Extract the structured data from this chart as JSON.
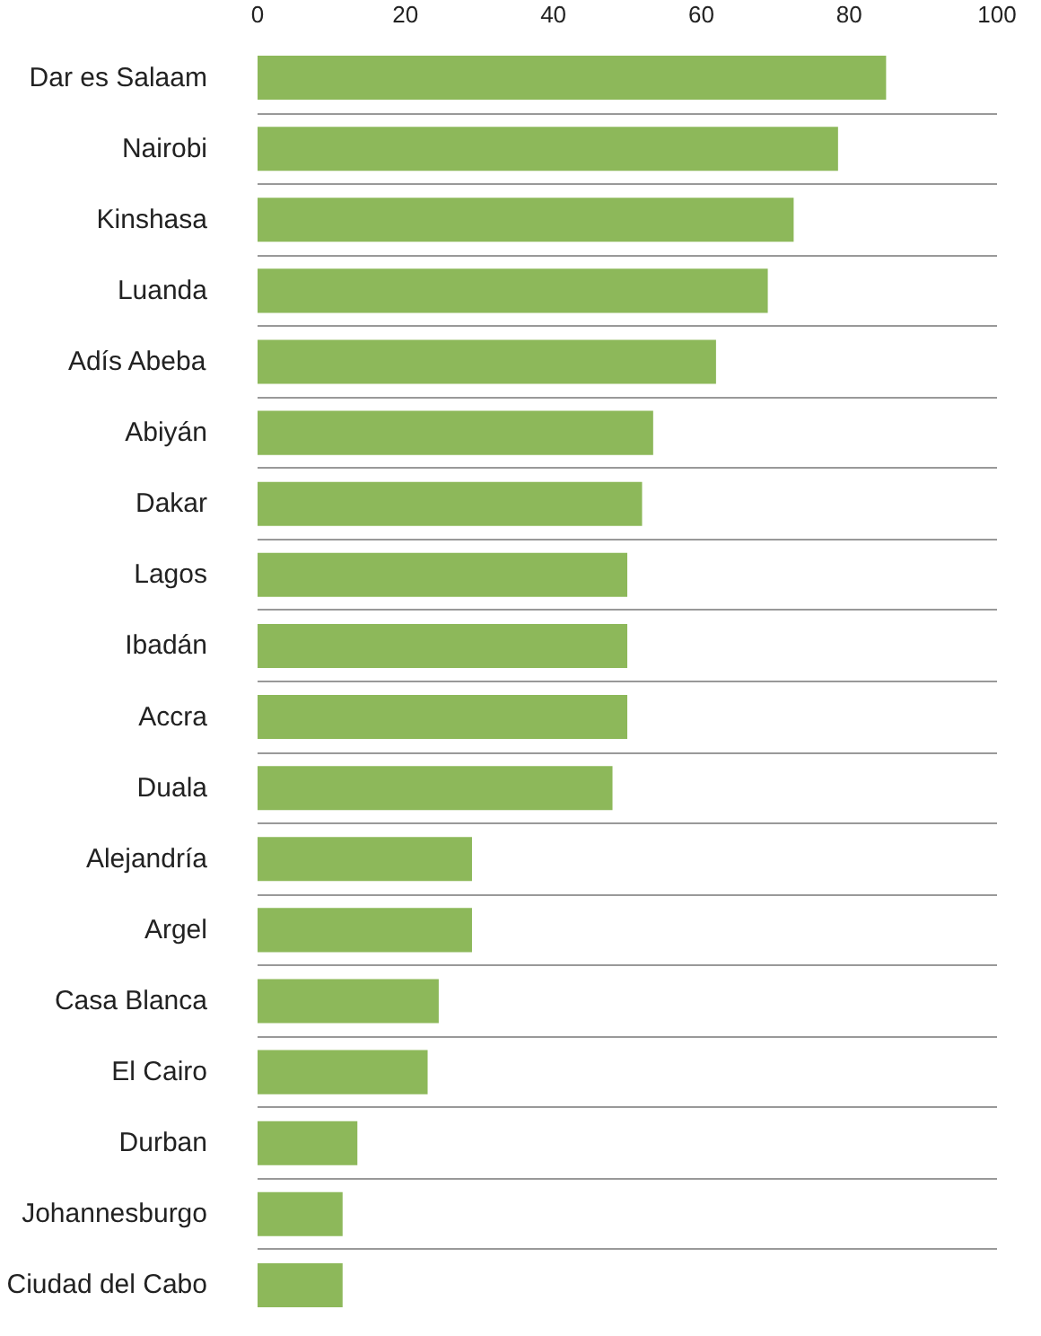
{
  "chart_data": {
    "type": "bar",
    "orientation": "horizontal",
    "categories": [
      "Dar es Salaam",
      "Nairobi",
      "Kinshasa",
      "Luanda",
      "Adís Abeba",
      "Abiyán",
      "Dakar",
      "Lagos",
      "Ibadán",
      "Accra",
      "Duala",
      "Alejandría",
      "Argel",
      "Casa Blanca",
      "El Cairo",
      "Durban",
      "Johannesburgo",
      "Ciudad del Cabo"
    ],
    "values": [
      85,
      78.5,
      72.5,
      69,
      62,
      53.5,
      52,
      50,
      50,
      50,
      48,
      29,
      29,
      24.5,
      23,
      13.5,
      11.5,
      11.5
    ],
    "color": "#8db85a",
    "xlim": [
      0,
      100
    ],
    "xticks": [
      0,
      20,
      40,
      60,
      80,
      100
    ]
  }
}
